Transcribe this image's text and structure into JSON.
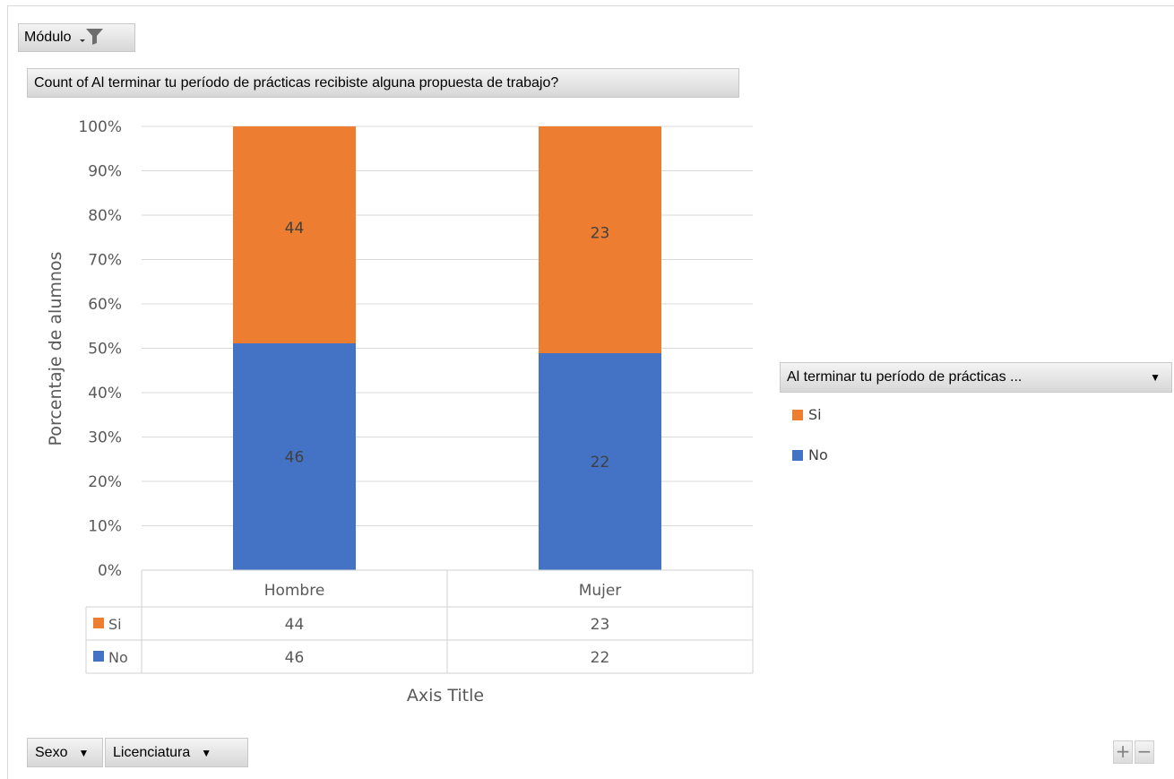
{
  "filters": {
    "report_filter_label": "Módulo",
    "value_field_label": "Count of Al terminar tu período de prácticas recibiste alguna propuesta de trabajo?",
    "legend_field_label": "Al terminar tu período de prácticas ...",
    "axis_fields": [
      "Sexo",
      "Licenciatura"
    ]
  },
  "icons": {
    "filter": "filter-funnel-icon",
    "dropdown": "chevron-down-icon",
    "zoom_in": "plus-icon",
    "zoom_out": "minus-icon"
  },
  "zoom": {
    "plus": "+",
    "minus": "−"
  },
  "colors": {
    "si": "#ED7D31",
    "no": "#4472C4",
    "grid": "#d9d9d9",
    "text": "#595959"
  },
  "chart_data": {
    "type": "bar",
    "stacked": "percent",
    "categories": [
      "Hombre",
      "Mujer"
    ],
    "series": [
      {
        "name": "No",
        "values": [
          46,
          22
        ],
        "color": "#4472C4"
      },
      {
        "name": "Si",
        "values": [
          44,
          23
        ],
        "color": "#ED7D31"
      }
    ],
    "ylabel": "Porcentaje de alumnos",
    "xlabel": "Axis Title",
    "ylim": [
      0,
      100
    ],
    "yticks": [
      "0%",
      "10%",
      "20%",
      "30%",
      "40%",
      "50%",
      "60%",
      "70%",
      "80%",
      "90%",
      "100%"
    ],
    "grid": true,
    "legend_position": "right",
    "data_table": true
  }
}
